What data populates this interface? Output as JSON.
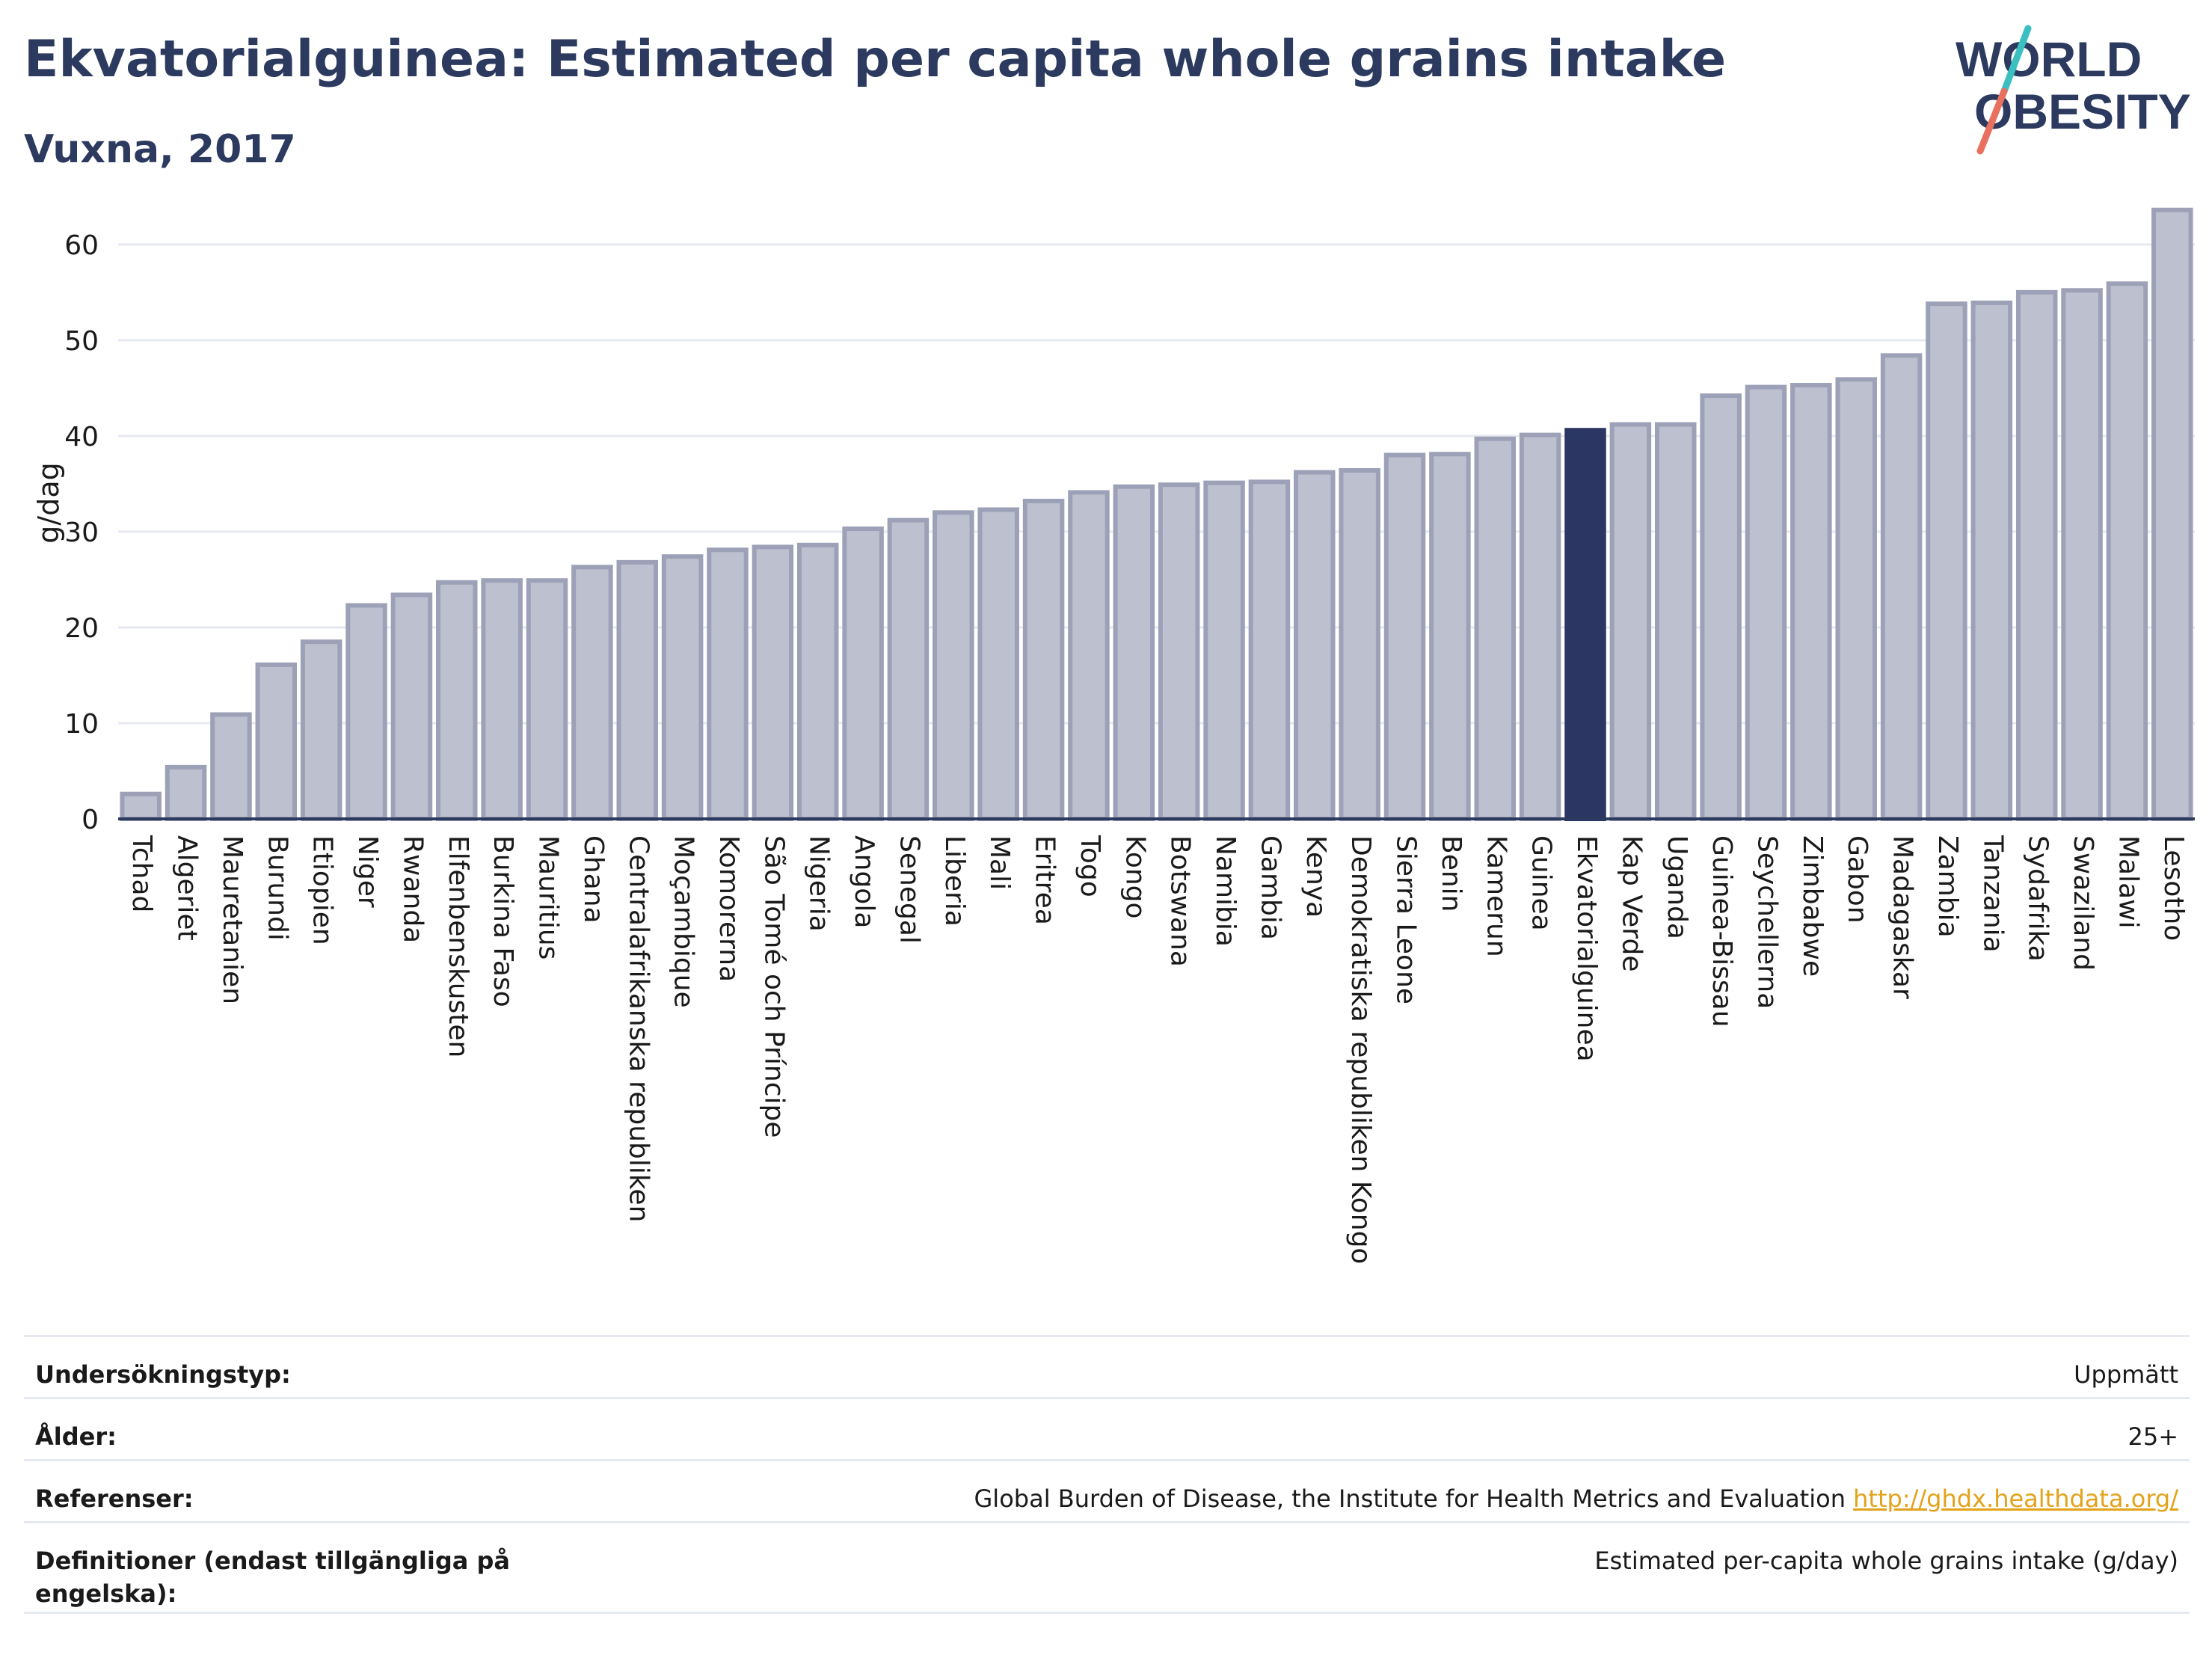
{
  "header": {
    "title": "Ekvatorialguinea: Estimated per capita whole grains intake",
    "subtitle": "Vuxna, 2017"
  },
  "logo": {
    "line1": "WORLD",
    "line2": "OBESITY",
    "colors": {
      "text": "#2d3a5f",
      "slash_top": "#3bbfc0",
      "slash_bottom": "#e8705f"
    }
  },
  "colors": {
    "bar": "#bcc0cf",
    "bar_stroke": "#9ca1b7",
    "highlight": "#2b3663",
    "grid": "#e6e9ef",
    "axis": "#2d3a5f",
    "link": "#e3a21a"
  },
  "chart_data": {
    "type": "bar",
    "ylabel": "g/dag",
    "ylim": [
      0,
      66
    ],
    "yticks": [
      0,
      10,
      20,
      30,
      40,
      50,
      60
    ],
    "grid": true,
    "highlight": "Ekvatorialguinea",
    "categories": [
      "Tchad",
      "Algeriet",
      "Mauretanien",
      "Burundi",
      "Etiopien",
      "Niger",
      "Rwanda",
      "Elfenbenskusten",
      "Burkina Faso",
      "Mauritius",
      "Ghana",
      "Centralafrikanska republiken",
      "Moçambique",
      "Komorerna",
      "São Tomé och Príncipe",
      "Nigeria",
      "Angola",
      "Senegal",
      "Liberia",
      "Mali",
      "Eritrea",
      "Togo",
      "Kongo",
      "Botswana",
      "Namibia",
      "Gambia",
      "Kenya",
      "Demokratiska republiken Kongo",
      "Sierra Leone",
      "Benin",
      "Kamerun",
      "Guinea",
      "Ekvatorialguinea",
      "Kap Verde",
      "Uganda",
      "Guinea-Bissau",
      "Seychellerna",
      "Zimbabwe",
      "Gabon",
      "Madagaskar",
      "Zambia",
      "Tanzania",
      "Sydafrika",
      "Swaziland",
      "Malawi",
      "Lesotho"
    ],
    "values": [
      2.6,
      5.4,
      10.9,
      16.1,
      18.5,
      22.3,
      23.4,
      24.7,
      24.9,
      24.9,
      26.3,
      26.8,
      27.4,
      28.1,
      28.4,
      28.6,
      30.3,
      31.2,
      32.0,
      32.3,
      33.2,
      34.1,
      34.7,
      34.9,
      35.1,
      35.2,
      36.2,
      36.4,
      38.0,
      38.1,
      39.7,
      40.1,
      40.6,
      41.2,
      41.2,
      44.2,
      45.1,
      45.3,
      45.9,
      48.4,
      53.8,
      53.9,
      55.0,
      55.2,
      55.9,
      63.6
    ]
  },
  "info": {
    "rows": [
      {
        "label": "Undersökningstyp:",
        "value": "Uppmätt",
        "link": ""
      },
      {
        "label": "Ålder:",
        "value": "25+",
        "link": ""
      },
      {
        "label": "Referenser:",
        "value": "Global Burden of Disease, the Institute for Health Metrics and Evaluation ",
        "link": "http://ghdx.healthdata.org/"
      },
      {
        "label": "Definitioner (endast tillgängliga på engelska):",
        "value": "Estimated per-capita whole grains intake (g/day)",
        "link": ""
      }
    ]
  }
}
